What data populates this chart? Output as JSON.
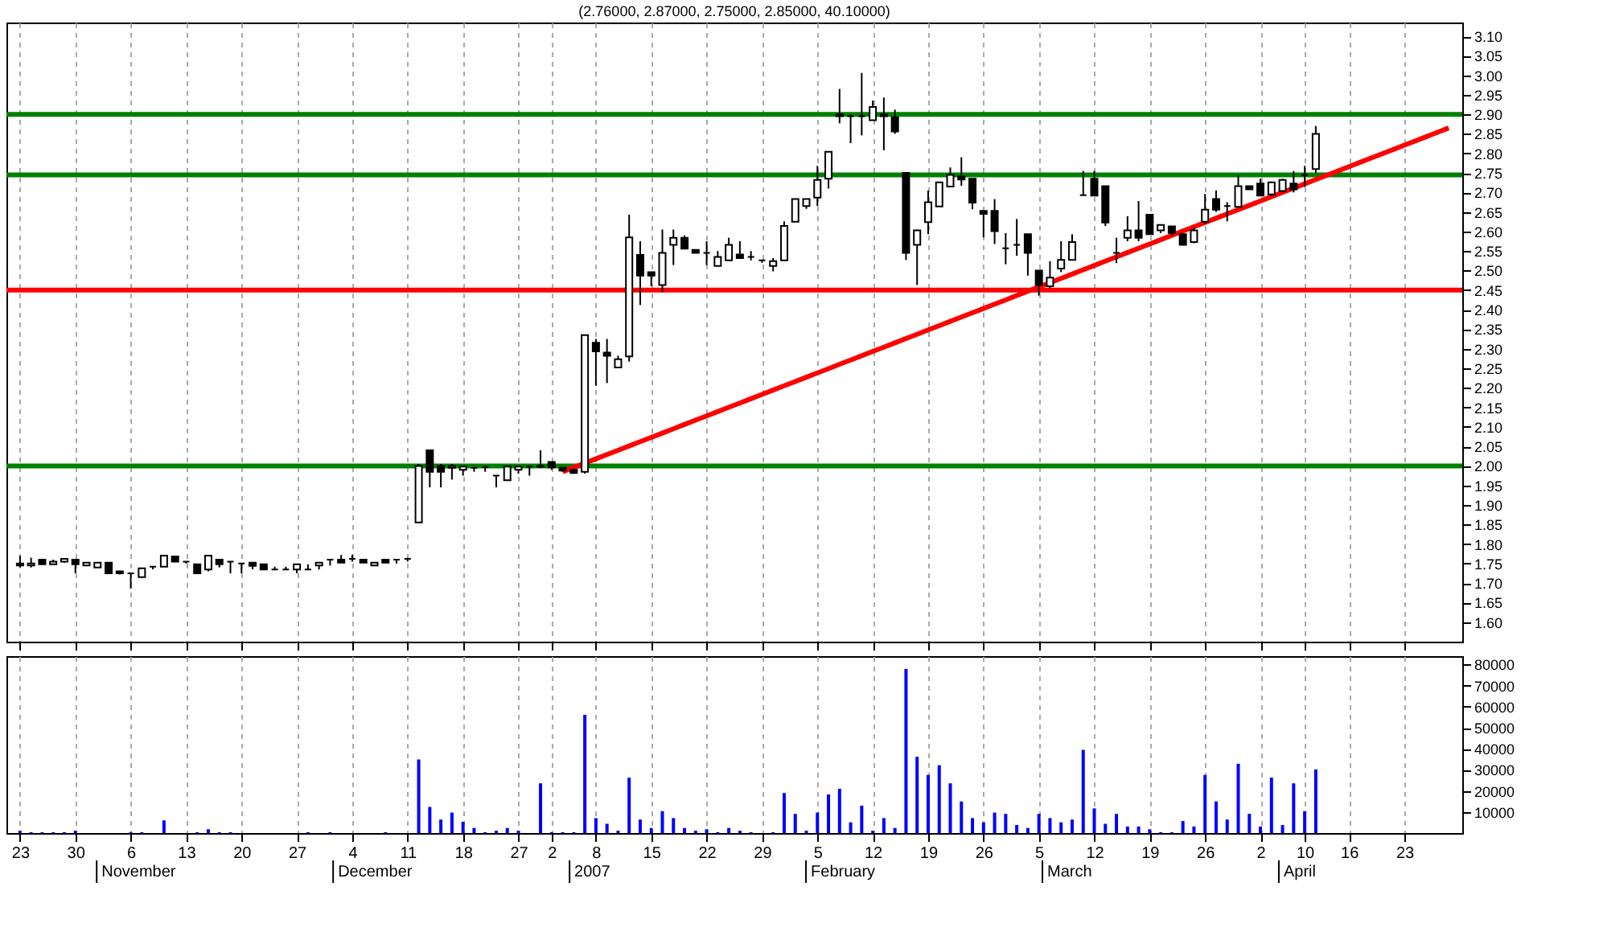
{
  "chart_data": [
    {
      "type": "candlestick",
      "title": "(2.76000, 2.87000, 2.75000, 2.85000, 40.10000)",
      "color": "#000000",
      "categories": [
        "23",
        null,
        null,
        null,
        null,
        "30",
        null,
        null,
        null,
        null,
        "6",
        null,
        null,
        null,
        null,
        "13",
        null,
        null,
        null,
        null,
        "20",
        null,
        null,
        null,
        null,
        "27",
        null,
        null,
        null,
        null,
        "4",
        null,
        null,
        null,
        null,
        "11",
        null,
        null,
        null,
        null,
        "18",
        null,
        null,
        null,
        null,
        "27",
        null,
        null,
        "2",
        null,
        null,
        null,
        "8",
        null,
        null,
        null,
        null,
        "15",
        null,
        null,
        null,
        null,
        "22",
        null,
        null,
        null,
        null,
        "29",
        null,
        null,
        null,
        null,
        "5",
        null,
        null,
        null,
        null,
        "12",
        null,
        null,
        null,
        null,
        "19",
        null,
        null,
        null,
        null,
        "26",
        null,
        null,
        null,
        null,
        "5",
        null,
        null,
        null,
        null,
        "12",
        null,
        null,
        null,
        null,
        "19",
        null,
        null,
        null,
        null,
        "26",
        null,
        null,
        null,
        null,
        "2",
        null,
        null,
        null,
        "10",
        null,
        null,
        null,
        "16",
        null,
        null,
        null,
        null,
        "23",
        null,
        null,
        null,
        null
      ],
      "ohlc": [
        [
          1.75,
          1.77,
          1.74,
          1.745
        ],
        [
          1.745,
          1.765,
          1.74,
          1.75
        ],
        [
          1.76,
          1.76,
          1.748,
          1.748
        ],
        [
          1.748,
          1.76,
          1.748,
          1.755
        ],
        [
          1.755,
          1.762,
          1.752,
          1.762
        ],
        [
          1.76,
          1.76,
          1.725,
          1.748
        ],
        [
          1.745,
          1.752,
          1.745,
          1.752
        ],
        [
          1.74,
          1.752,
          1.74,
          1.752
        ],
        [
          1.752,
          1.752,
          1.725,
          1.725
        ],
        [
          1.73,
          1.73,
          1.722,
          1.725
        ],
        [
          1.725,
          1.725,
          1.686,
          1.725
        ],
        [
          1.715,
          1.738,
          1.715,
          1.738
        ],
        [
          1.742,
          1.742,
          1.735,
          1.742
        ],
        [
          1.742,
          1.77,
          1.742,
          1.77
        ],
        [
          1.768,
          1.768,
          1.755,
          1.755
        ],
        [
          1.755,
          1.755,
          1.75,
          1.755
        ],
        [
          1.748,
          1.748,
          1.725,
          1.725
        ],
        [
          1.735,
          1.77,
          1.73,
          1.77
        ],
        [
          1.76,
          1.76,
          1.74,
          1.748
        ],
        [
          1.755,
          1.755,
          1.725,
          1.755
        ],
        [
          1.75,
          1.75,
          1.725,
          1.75
        ],
        [
          1.752,
          1.752,
          1.735,
          1.744
        ],
        [
          1.748,
          1.748,
          1.735,
          1.735
        ],
        [
          1.735,
          1.742,
          1.735,
          1.735
        ],
        [
          1.735,
          1.742,
          1.735,
          1.735
        ],
        [
          1.735,
          1.748,
          1.725,
          1.748
        ],
        [
          1.735,
          1.748,
          1.735,
          1.735
        ],
        [
          1.745,
          1.752,
          1.735,
          1.752
        ],
        [
          1.76,
          1.76,
          1.745,
          1.76
        ],
        [
          1.76,
          1.772,
          1.752,
          1.752
        ],
        [
          1.762,
          1.772,
          1.755,
          1.762
        ],
        [
          1.76,
          1.76,
          1.752,
          1.752
        ],
        [
          1.745,
          1.752,
          1.745,
          1.752
        ],
        [
          1.76,
          1.76,
          1.752,
          1.752
        ],
        [
          1.76,
          1.76,
          1.75,
          1.76
        ],
        [
          1.762,
          1.765,
          1.755,
          1.762
        ],
        [
          1.855,
          2.005,
          1.855,
          2.0
        ],
        [
          2.04,
          2.04,
          1.945,
          1.985
        ],
        [
          2.0,
          2.005,
          1.945,
          1.985
        ],
        [
          1.995,
          2.005,
          1.965,
          2.0
        ],
        [
          1.99,
          1.998,
          1.975,
          1.998
        ],
        [
          1.995,
          1.995,
          1.985,
          1.995
        ],
        [
          1.997,
          1.997,
          1.985,
          1.997
        ],
        [
          1.975,
          1.975,
          1.945,
          1.975
        ],
        [
          1.963,
          1.998,
          1.963,
          1.998
        ],
        [
          1.99,
          1.998,
          1.98,
          1.998
        ],
        [
          1.998,
          1.998,
          1.975,
          1.998
        ],
        [
          1.998,
          2.04,
          1.995,
          2.0
        ],
        [
          2.01,
          2.01,
          1.99,
          1.996
        ],
        [
          1.995,
          1.998,
          1.985,
          1.988
        ],
        [
          1.99,
          1.992,
          1.98,
          1.982
        ],
        [
          1.985,
          2.335,
          1.98,
          2.335
        ],
        [
          2.315,
          2.325,
          2.205,
          2.293
        ],
        [
          2.29,
          2.325,
          2.212,
          2.282
        ],
        [
          2.252,
          2.282,
          2.252,
          2.273
        ],
        [
          2.28,
          2.643,
          2.267,
          2.585
        ],
        [
          2.54,
          2.575,
          2.412,
          2.487
        ],
        [
          2.496,
          2.496,
          2.46,
          2.487
        ],
        [
          2.463,
          2.605,
          2.445,
          2.545
        ],
        [
          2.566,
          2.605,
          2.514,
          2.584
        ],
        [
          2.584,
          2.59,
          2.556,
          2.556
        ],
        [
          2.553,
          2.553,
          2.545,
          2.545
        ],
        [
          2.545,
          2.575,
          2.514,
          2.545
        ],
        [
          2.512,
          2.55,
          2.512,
          2.535
        ],
        [
          2.526,
          2.584,
          2.526,
          2.566
        ],
        [
          2.541,
          2.575,
          2.532,
          2.532
        ],
        [
          2.535,
          2.55,
          2.526,
          2.535
        ],
        [
          2.526,
          2.526,
          2.52,
          2.526
        ],
        [
          2.512,
          2.532,
          2.498,
          2.524
        ],
        [
          2.526,
          2.626,
          2.526,
          2.614
        ],
        [
          2.625,
          2.683,
          2.625,
          2.683
        ],
        [
          2.665,
          2.683,
          2.658,
          2.683
        ],
        [
          2.687,
          2.768,
          2.665,
          2.732
        ],
        [
          2.735,
          2.804,
          2.71,
          2.804
        ],
        [
          2.9,
          2.965,
          2.877,
          2.895
        ],
        [
          2.895,
          2.9,
          2.826,
          2.895
        ],
        [
          2.895,
          3.006,
          2.846,
          2.895
        ],
        [
          2.885,
          2.935,
          2.885,
          2.919
        ],
        [
          2.9,
          2.943,
          2.808,
          2.895
        ],
        [
          2.892,
          2.912,
          2.85,
          2.856
        ],
        [
          2.75,
          2.75,
          2.527,
          2.545
        ],
        [
          2.566,
          2.605,
          2.463,
          2.603
        ],
        [
          2.624,
          2.705,
          2.593,
          2.675
        ],
        [
          2.664,
          2.726,
          2.664,
          2.726
        ],
        [
          2.715,
          2.764,
          2.715,
          2.745
        ],
        [
          2.741,
          2.79,
          2.717,
          2.733
        ],
        [
          2.735,
          2.735,
          2.657,
          2.674
        ],
        [
          2.653,
          2.653,
          2.585,
          2.645
        ],
        [
          2.653,
          2.683,
          2.568,
          2.601
        ],
        [
          2.557,
          2.596,
          2.516,
          2.557
        ],
        [
          2.566,
          2.632,
          2.538,
          2.566
        ],
        [
          2.593,
          2.593,
          2.487,
          2.545
        ],
        [
          2.5,
          2.5,
          2.436,
          2.463
        ],
        [
          2.46,
          2.524,
          2.455,
          2.482
        ],
        [
          2.505,
          2.575,
          2.496,
          2.527
        ],
        [
          2.527,
          2.593,
          2.527,
          2.573
        ],
        [
          2.693,
          2.755,
          2.693,
          2.693
        ],
        [
          2.735,
          2.755,
          2.692,
          2.692
        ],
        [
          2.716,
          2.716,
          2.614,
          2.623
        ],
        [
          2.545,
          2.584,
          2.519,
          2.545
        ],
        [
          2.584,
          2.639,
          2.575,
          2.603
        ],
        [
          2.603,
          2.678,
          2.575,
          2.584
        ],
        [
          2.643,
          2.643,
          2.593,
          2.593
        ],
        [
          2.603,
          2.617,
          2.596,
          2.617
        ],
        [
          2.613,
          2.613,
          2.59,
          2.596
        ],
        [
          2.593,
          2.593,
          2.566,
          2.566
        ],
        [
          2.573,
          2.61,
          2.57,
          2.603
        ],
        [
          2.625,
          2.696,
          2.62,
          2.656
        ],
        [
          2.683,
          2.705,
          2.65,
          2.656
        ],
        [
          2.665,
          2.675,
          2.626,
          2.665
        ],
        [
          2.663,
          2.744,
          2.663,
          2.716
        ],
        [
          2.716,
          2.716,
          2.708,
          2.708
        ],
        [
          2.723,
          2.735,
          2.692,
          2.692
        ],
        [
          2.695,
          2.726,
          2.69,
          2.726
        ],
        [
          2.704,
          2.735,
          2.7,
          2.732
        ],
        [
          2.723,
          2.755,
          2.7,
          2.708
        ],
        [
          2.745,
          2.768,
          2.714,
          2.745
        ],
        [
          2.76,
          2.87,
          2.75,
          2.85
        ],
        null,
        null,
        null,
        null,
        null,
        null,
        null,
        null,
        null,
        null,
        null,
        null
      ],
      "series": [
        {
          "type": "line",
          "color": "#ff0000",
          "values": [
            null,
            null,
            null,
            null,
            null,
            null,
            null,
            null,
            null,
            null,
            null,
            null,
            null,
            null,
            null,
            null,
            null,
            null,
            null,
            null,
            null,
            null,
            null,
            null,
            null,
            null,
            null,
            null,
            null,
            null,
            null,
            null,
            null,
            null,
            null,
            null,
            null,
            null,
            null,
            null,
            null,
            null,
            null,
            null,
            null,
            null,
            null,
            null,
            null,
            1.985,
            1.996,
            2.007,
            2.018,
            2.029,
            2.04,
            2.051,
            2.062,
            2.073,
            2.084,
            2.095,
            2.106,
            2.117,
            2.128,
            2.139,
            2.15,
            2.161,
            2.172,
            2.183,
            2.194,
            2.205,
            2.216,
            2.227,
            2.238,
            2.249,
            2.26,
            2.271,
            2.282,
            2.293,
            2.304,
            2.315,
            2.326,
            2.337,
            2.348,
            2.359,
            2.37,
            2.381,
            2.392,
            2.403,
            2.414,
            2.425,
            2.436,
            2.447,
            2.458,
            2.469,
            2.48,
            2.491,
            2.502,
            2.513,
            2.524,
            2.535,
            2.546,
            2.557,
            2.568,
            2.579,
            2.59,
            2.601,
            2.612,
            2.623,
            2.634,
            2.645,
            2.656,
            2.667,
            2.678,
            2.689,
            2.7,
            2.711,
            2.722,
            2.733,
            2.744,
            2.755,
            2.766,
            2.777,
            2.788,
            2.799,
            2.81,
            2.821,
            2.832,
            2.843,
            2.854,
            2.865
          ]
        }
      ],
      "ref_lines": [
        {
          "axis": "y",
          "value": 2.9,
          "color": "#008000"
        },
        {
          "axis": "y",
          "value": 2.745,
          "color": "#008000"
        },
        {
          "axis": "y",
          "value": 2.0,
          "color": "#008000"
        },
        {
          "axis": "y",
          "value": 2.45,
          "color": "#ff0000"
        }
      ],
      "ylim": [
        1.55,
        3.135
      ],
      "yticks": [
        {
          "value": 1.6,
          "label": "1.60"
        },
        {
          "value": 1.65,
          "label": "1.65"
        },
        {
          "value": 1.7,
          "label": "1.70"
        },
        {
          "value": 1.75,
          "label": "1.75"
        },
        {
          "value": 1.8,
          "label": "1.80"
        },
        {
          "value": 1.85,
          "label": "1.85"
        },
        {
          "value": 1.9,
          "label": "1.90"
        },
        {
          "value": 1.95,
          "label": "1.95"
        },
        {
          "value": 2.0,
          "label": "2.00"
        },
        {
          "value": 2.05,
          "label": "2.05"
        },
        {
          "value": 2.1,
          "label": "2.10"
        },
        {
          "value": 2.15,
          "label": "2.15"
        },
        {
          "value": 2.2,
          "label": "2.20"
        },
        {
          "value": 2.25,
          "label": "2.25"
        },
        {
          "value": 2.3,
          "label": "2.30"
        },
        {
          "value": 2.35,
          "label": "2.35"
        },
        {
          "value": 2.4,
          "label": "2.40"
        },
        {
          "value": 2.45,
          "label": "2.45"
        },
        {
          "value": 2.5,
          "label": "2.50"
        },
        {
          "value": 2.55,
          "label": "2.55"
        },
        {
          "value": 2.6,
          "label": "2.60"
        },
        {
          "value": 2.65,
          "label": "2.65"
        },
        {
          "value": 2.7,
          "label": "2.70"
        },
        {
          "value": 2.75,
          "label": "2.75"
        },
        {
          "value": 2.8,
          "label": "2.80"
        },
        {
          "value": 2.85,
          "label": "2.85"
        },
        {
          "value": 2.9,
          "label": "2.90"
        },
        {
          "value": 2.95,
          "label": "2.95"
        },
        {
          "value": 3.0,
          "label": "3.00"
        },
        {
          "value": 3.05,
          "label": "3.05"
        },
        {
          "value": 3.1,
          "label": "3.10"
        }
      ],
      "grid": "x",
      "tick_labels": "y"
    },
    {
      "type": "bar",
      "color": "#0000ff",
      "categories": [
        "23",
        null,
        null,
        null,
        null,
        "30",
        null,
        null,
        null,
        null,
        "6",
        null,
        null,
        null,
        null,
        "13",
        null,
        null,
        null,
        null,
        "20",
        null,
        null,
        null,
        null,
        "27",
        null,
        null,
        null,
        null,
        "4",
        null,
        null,
        null,
        null,
        "11",
        null,
        null,
        null,
        null,
        "18",
        null,
        null,
        null,
        null,
        "27",
        null,
        null,
        "2",
        null,
        null,
        null,
        "8",
        null,
        null,
        null,
        null,
        "15",
        null,
        null,
        null,
        null,
        "22",
        null,
        null,
        null,
        null,
        "29",
        null,
        null,
        null,
        null,
        "5",
        null,
        null,
        null,
        null,
        "12",
        null,
        null,
        null,
        null,
        "19",
        null,
        null,
        null,
        null,
        "26",
        null,
        null,
        null,
        null,
        "5",
        null,
        null,
        null,
        null,
        "12",
        null,
        null,
        null,
        null,
        "19",
        null,
        null,
        null,
        null,
        "26",
        null,
        null,
        null,
        null,
        "2",
        null,
        null,
        null,
        "10",
        null,
        null,
        null,
        "16",
        null,
        null,
        null,
        null,
        "23",
        null,
        null,
        null,
        null
      ],
      "values": [
        1100,
        400,
        400,
        400,
        400,
        1100,
        0,
        0,
        0,
        0,
        400,
        400,
        0,
        6000,
        0,
        0,
        400,
        1800,
        400,
        400,
        0,
        0,
        0,
        0,
        0,
        0,
        400,
        0,
        400,
        0,
        0,
        0,
        0,
        400,
        0,
        0,
        34900,
        12400,
        6400,
        9700,
        5300,
        2400,
        400,
        1100,
        2400,
        1100,
        0,
        23600,
        400,
        400,
        400,
        56100,
        7100,
        4400,
        1100,
        26300,
        6400,
        2400,
        10400,
        7100,
        2400,
        1100,
        1800,
        400,
        2400,
        1100,
        400,
        0,
        400,
        19000,
        9100,
        1100,
        9700,
        18300,
        21000,
        5100,
        13000,
        1100,
        7100,
        2400,
        77900,
        36200,
        27600,
        32200,
        23600,
        15000,
        7100,
        5100,
        9700,
        9100,
        3800,
        2400,
        9100,
        7100,
        5100,
        6400,
        39500,
        11700,
        4400,
        9100,
        3100,
        3100,
        1800,
        400,
        400,
        5700,
        3100,
        27600,
        15000,
        6400,
        32900,
        9100,
        3100,
        26300,
        3800,
        23600,
        10400,
        30200,
        null,
        null,
        null,
        null,
        null,
        null,
        null,
        null,
        null,
        null,
        null,
        null
      ],
      "ylim": [
        0,
        84000
      ],
      "yticks": [
        10000,
        20000,
        30000,
        40000,
        50000,
        60000,
        70000,
        80000
      ],
      "grid": "x",
      "annotations": [
        "November",
        "December",
        "2007",
        "February",
        "March",
        "April"
      ]
    }
  ]
}
